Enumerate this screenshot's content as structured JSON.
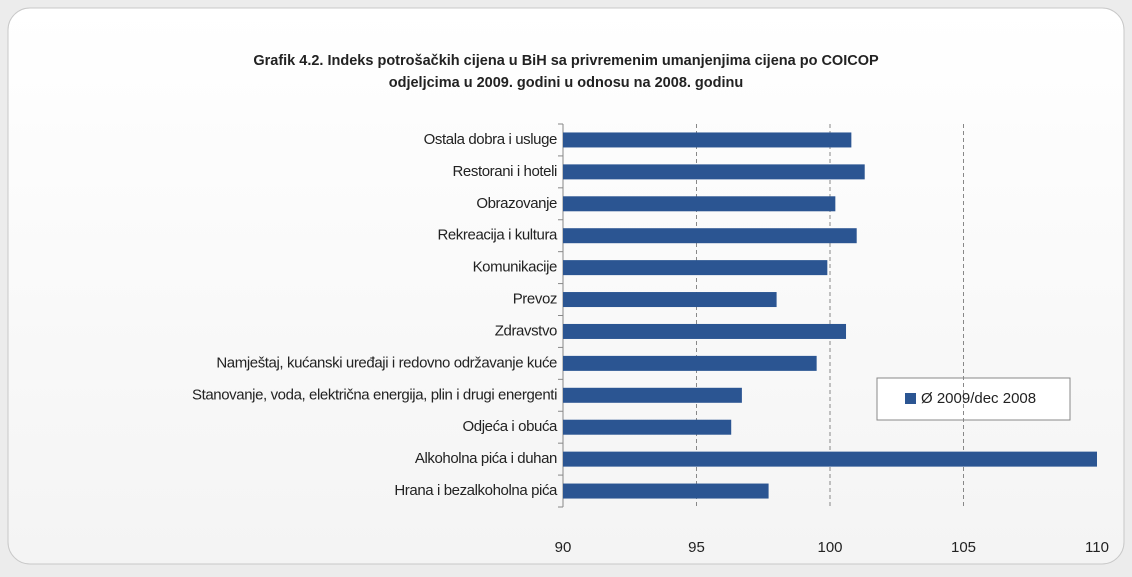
{
  "chart_data": {
    "type": "barh",
    "title": [
      "Grafik 4.2. Indeks potrošačkih cijena u BiH sa privremenim umanjenjima cijena po COICOP",
      "odjeljcima u 2009. godini u odnosu na 2008. godinu"
    ],
    "categories": [
      "Ostala dobra i usluge",
      "Restorani i hoteli",
      "Obrazovanje",
      "Rekreacija i kultura",
      "Komunikacije",
      "Prevoz",
      "Zdravstvo",
      "Namještaj, kućanski uređaji i redovno održavanje kuće",
      "Stanovanje,  voda, električna energija, plin i drugi energenti",
      "Odjeća i obuća",
      "Alkoholna pića i duhan",
      "Hrana i bezalkoholna pića"
    ],
    "series": [
      {
        "name": "Ø 2009/dec 2008",
        "color": "#2b5592",
        "values": [
          100.8,
          101.3,
          100.2,
          101.0,
          99.9,
          98.0,
          100.6,
          99.5,
          96.7,
          96.3,
          110.0,
          97.7
        ]
      }
    ],
    "xlim": [
      90,
      110
    ],
    "xticks": [
      90,
      95,
      100,
      105,
      110
    ],
    "grid": true,
    "legend": "right"
  }
}
